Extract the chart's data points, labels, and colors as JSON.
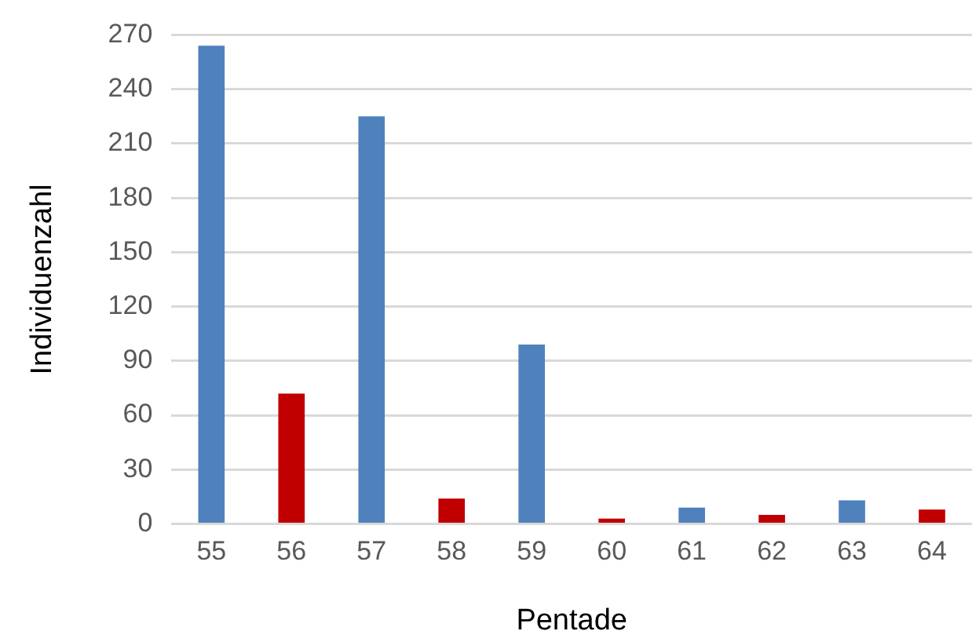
{
  "chart_data": {
    "type": "bar",
    "xlabel": "Pentade",
    "ylabel": "Individuenzahl",
    "categories": [
      "55",
      "56",
      "57",
      "58",
      "59",
      "60",
      "61",
      "62",
      "63",
      "64"
    ],
    "values": [
      264,
      72,
      225,
      14,
      99,
      3,
      9,
      5,
      13,
      8
    ],
    "colors": [
      "#4f81bd",
      "#c00000",
      "#4f81bd",
      "#c00000",
      "#4f81bd",
      "#c00000",
      "#4f81bd",
      "#c00000",
      "#4f81bd",
      "#c00000"
    ],
    "ylim": [
      0,
      270
    ],
    "yticks": [
      0,
      30,
      60,
      90,
      120,
      150,
      180,
      210,
      240,
      270
    ],
    "grid": "y"
  }
}
